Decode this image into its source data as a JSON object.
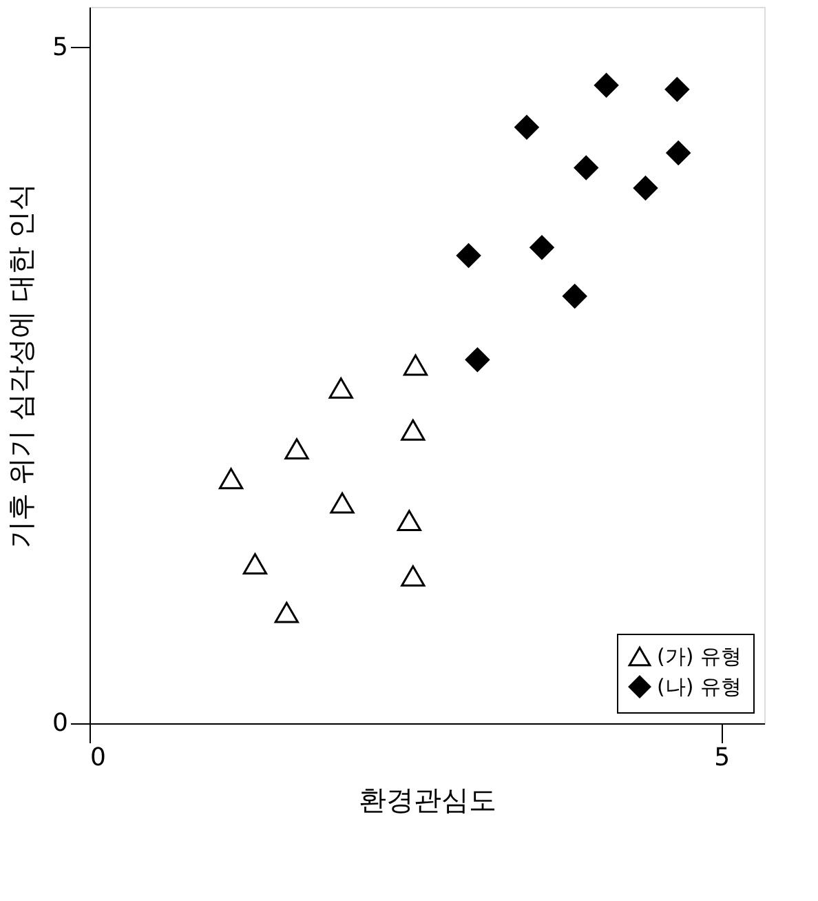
{
  "chart_data": {
    "type": "scatter",
    "xlabel": "환경관심도",
    "ylabel": "기후 위기 심각성에 대한 인식",
    "xlim": [
      0,
      5.34
    ],
    "ylim": [
      0,
      5.3
    ],
    "xticks": [
      0,
      5
    ],
    "yticks": [
      0,
      5
    ],
    "grid": false,
    "legend": "bottom right",
    "series": [
      {
        "name": "(가) 유형",
        "color": "#000000",
        "marker": "triangle",
        "x": [
          1.12,
          1.64,
          1.99,
          2.58,
          2.56,
          2.0,
          2.53,
          1.31,
          1.56,
          2.56
        ],
        "values": [
          1.81,
          2.03,
          2.48,
          2.65,
          2.17,
          1.63,
          1.5,
          1.18,
          0.82,
          1.09
        ]
      },
      {
        "name": "(나) 유형",
        "color": "#000000",
        "marker": "diamond",
        "x": [
          3.0,
          3.07,
          3.46,
          3.58,
          3.84,
          3.93,
          4.09,
          4.4,
          4.65,
          4.66
        ],
        "values": [
          3.46,
          2.69,
          4.41,
          3.52,
          3.16,
          4.11,
          4.72,
          3.96,
          4.69,
          4.22
        ]
      }
    ]
  }
}
